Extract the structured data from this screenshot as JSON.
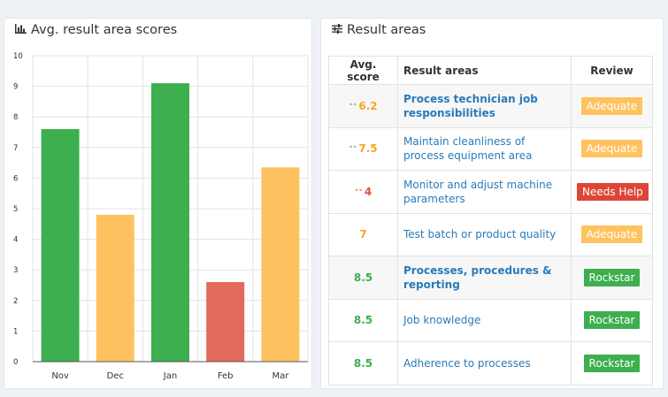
{
  "chart_panel": {
    "title": "Avg. result area scores",
    "icon": "bar-chart-icon"
  },
  "areas_panel": {
    "title": "Result areas",
    "icon": "sliders-icon"
  },
  "chart_data": {
    "type": "bar",
    "categories": [
      "Nov",
      "Dec",
      "Jan",
      "Feb",
      "Mar"
    ],
    "values": [
      7.6,
      4.8,
      9.1,
      2.6,
      6.35
    ],
    "colors": [
      "#3daf4e",
      "#ffc260",
      "#3daf4e",
      "#e26a5a",
      "#ffc260"
    ],
    "ylim": [
      0,
      10
    ],
    "yticks": [
      "0",
      "1",
      "2",
      "3",
      "4",
      "5",
      "6",
      "7",
      "8",
      "9",
      "10"
    ],
    "grid": true
  },
  "table": {
    "headers": {
      "score": "Avg. score",
      "area": "Result areas",
      "review": "Review"
    },
    "rows": [
      {
        "score": "6.2",
        "arrow": "up",
        "score_color": "#f5a623",
        "arrow_color": "#3daf4e",
        "area": "Process technician job responsibilities",
        "bold": true,
        "review": "Adequate",
        "review_color": "#ffc260",
        "alt": true
      },
      {
        "score": "7.5",
        "arrow": "up",
        "score_color": "#f5a623",
        "arrow_color": "#3daf4e",
        "area": "Maintain cleanliness of process equipment area",
        "bold": false,
        "review": "Adequate",
        "review_color": "#ffc260",
        "alt": false
      },
      {
        "score": "4",
        "arrow": "down",
        "score_color": "#e24c3c",
        "arrow_color": "#e24c3c",
        "area": "Monitor and adjust machine parameters",
        "bold": false,
        "review": "Needs Help",
        "review_color": "#dc4638",
        "alt": false
      },
      {
        "score": "7",
        "arrow": "",
        "score_color": "#f5a623",
        "arrow_color": "",
        "area": "Test batch or product quality",
        "bold": false,
        "review": "Adequate",
        "review_color": "#ffc260",
        "alt": false
      },
      {
        "score": "8.5",
        "arrow": "",
        "score_color": "#3daf4e",
        "arrow_color": "",
        "area": "Processes, procedures & reporting",
        "bold": true,
        "review": "Rockstar",
        "review_color": "#3daf4e",
        "alt": true
      },
      {
        "score": "8.5",
        "arrow": "",
        "score_color": "#3daf4e",
        "arrow_color": "",
        "area": "Job knowledge",
        "bold": false,
        "review": "Rockstar",
        "review_color": "#3daf4e",
        "alt": false
      },
      {
        "score": "8.5",
        "arrow": "",
        "score_color": "#3daf4e",
        "arrow_color": "",
        "area": "Adherence to processes",
        "bold": false,
        "review": "Rockstar",
        "review_color": "#3daf4e",
        "alt": false
      }
    ]
  }
}
